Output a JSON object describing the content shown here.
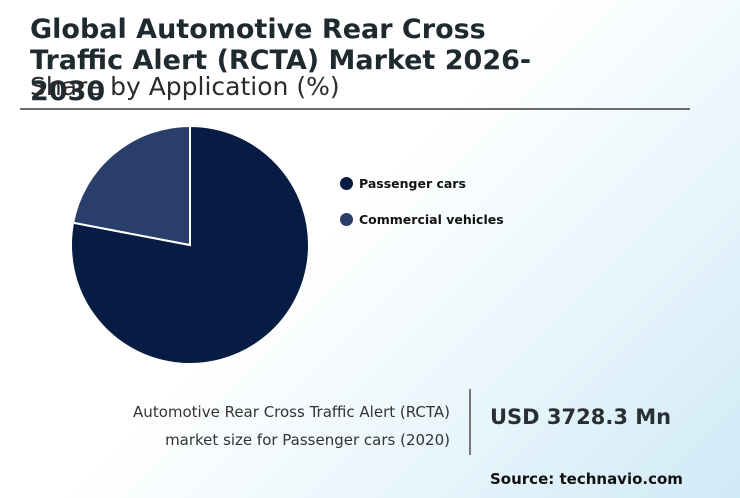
{
  "header": {
    "title": "Global Automotive Rear Cross Traffic Alert (RCTA) Market 2026-2030",
    "subtitle": "Share by Application (%)"
  },
  "chart_data": {
    "type": "pie",
    "categories": [
      "Passenger cars",
      "Commercial vehicles"
    ],
    "values": [
      78,
      22
    ],
    "colors": [
      "#071c42",
      "#2a3e6c"
    ],
    "legend_position": "right"
  },
  "info": {
    "description_line1": "Automotive Rear Cross Traffic Alert (RCTA)",
    "description_line2": "market size for Passenger cars (2020)",
    "value": "USD 3728.3 Mn",
    "source": "Source: technavio.com"
  }
}
